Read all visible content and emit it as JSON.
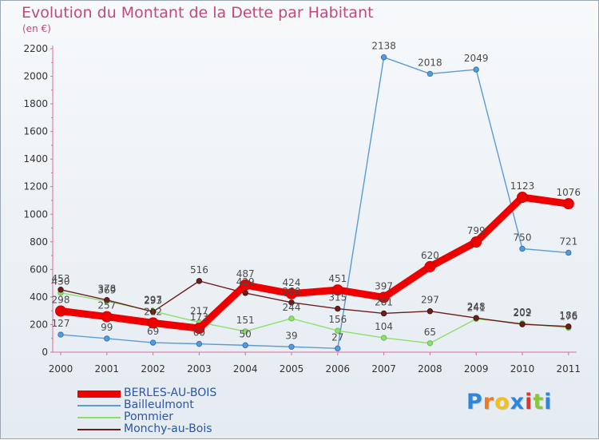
{
  "chart_data": {
    "type": "line",
    "title": "Evolution du Montant de la Dette par Habitant",
    "subtitle": "(en €)",
    "x": [
      "2000",
      "2001",
      "2002",
      "2003",
      "2004",
      "2005",
      "2006",
      "2007",
      "2008",
      "2009",
      "2010",
      "2011"
    ],
    "ylim": [
      0,
      2200
    ],
    "yticks": [
      0,
      200,
      400,
      600,
      800,
      1000,
      1200,
      1400,
      1600,
      1800,
      2000,
      2200
    ],
    "grid": false,
    "legend_position": "bottom-left",
    "series": [
      {
        "name": "BERLES-AU-BOIS",
        "color": "#ee0000",
        "values": [
          298,
          257,
          212,
          173,
          487,
          424,
          451,
          397,
          620,
          799,
          1123,
          1076
        ]
      },
      {
        "name": "Bailleulmont",
        "color": "#5b9bd5",
        "values": [
          127,
          99,
          69,
          60,
          50,
          39,
          27,
          2138,
          2018,
          2049,
          750,
          721
        ]
      },
      {
        "name": "Pommier",
        "color": "#8ede6d",
        "values": [
          430,
          369,
          297,
          217,
          151,
          244,
          156,
          104,
          65,
          241,
          209,
          176
        ]
      },
      {
        "name": "Monchy-au-Bois",
        "color": "#6b1e1e",
        "values": [
          453,
          378,
          293,
          516,
          429,
          360,
          315,
          281,
          297,
          248,
          202,
          186
        ]
      }
    ]
  },
  "logo": {
    "letters": [
      "P",
      "r",
      "o",
      "x",
      "i",
      "t",
      "i"
    ],
    "colors": [
      "#2e86d8",
      "#f07b1a",
      "#f2c21b",
      "#2e86d8",
      "#e0342f",
      "#8cc63f",
      "#2e86d8"
    ]
  }
}
